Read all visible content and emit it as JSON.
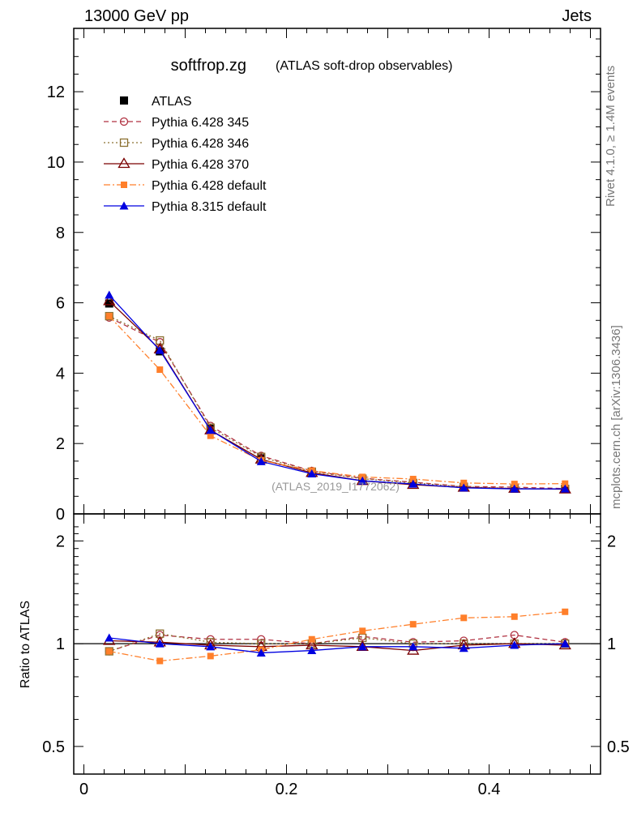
{
  "header": {
    "energy": "13000 GeV pp",
    "process": "Jets"
  },
  "side_labels": {
    "rivet": "Rivet 4.1.0, ≥ 1.4M events",
    "mcplots": "mcplots.cern.ch [arXiv:1306.3436]"
  },
  "colors": {
    "atlas": "#000000",
    "p6_345": "#b03040",
    "p6_346": "#8b7030",
    "p6_370": "#7a0000",
    "p6_default": "#ff7f2a",
    "p8_default": "#0000e0"
  },
  "chart_data": [
    {
      "type": "line",
      "title": "softfrop.zg",
      "subtitle": "(ATLAS soft-drop observables)",
      "watermark": "(ATLAS_2019_I1772062)",
      "xlabel": "",
      "ylabel": "",
      "xlim": [
        -0.01,
        0.51
      ],
      "ylim": [
        0,
        13.8
      ],
      "yticks": [
        0,
        2,
        4,
        6,
        8,
        10,
        12
      ],
      "ytick_labels": [
        "0",
        "2",
        "4",
        "6",
        "8",
        "10",
        "12"
      ],
      "legend_position": "top-left",
      "x": [
        0.025,
        0.075,
        0.125,
        0.175,
        0.225,
        0.275,
        0.325,
        0.375,
        0.425,
        0.475
      ],
      "series": [
        {
          "name": "ATLAS",
          "key": "atlas",
          "style": "data",
          "marker": "filled-square",
          "values": [
            5.98,
            4.62,
            2.42,
            1.58,
            1.19,
            0.96,
            0.87,
            0.76,
            0.72,
            0.71
          ]
        },
        {
          "name": "Pythia 6.428 345",
          "key": "p6_345",
          "style": "dashed",
          "marker": "open-circle",
          "values": [
            5.58,
            4.88,
            2.5,
            1.65,
            1.22,
            1.01,
            0.9,
            0.78,
            0.76,
            0.72
          ]
        },
        {
          "name": "Pythia 6.428 346",
          "key": "p6_346",
          "style": "dotted",
          "marker": "open-square",
          "values": [
            5.62,
            4.93,
            2.45,
            1.62,
            1.2,
            1.0,
            0.88,
            0.77,
            0.72,
            0.71
          ]
        },
        {
          "name": "Pythia 6.428 370",
          "key": "p6_370",
          "style": "solid",
          "marker": "open-triangle",
          "values": [
            6.05,
            4.68,
            2.38,
            1.55,
            1.17,
            0.94,
            0.83,
            0.75,
            0.72,
            0.7
          ]
        },
        {
          "name": "Pythia 6.428 default",
          "key": "p6_default",
          "style": "dashdot",
          "marker": "filled-square-small",
          "values": [
            5.62,
            4.1,
            2.22,
            1.52,
            1.23,
            1.05,
            0.99,
            0.88,
            0.85,
            0.86
          ]
        },
        {
          "name": "Pythia 8.315 default",
          "key": "p8_default",
          "style": "solid",
          "marker": "filled-triangle",
          "values": [
            6.22,
            4.65,
            2.38,
            1.49,
            1.14,
            0.94,
            0.85,
            0.74,
            0.71,
            0.71
          ]
        }
      ]
    },
    {
      "type": "line",
      "title": "",
      "xlabel": "",
      "ylabel": "Ratio to ATLAS",
      "xlim": [
        -0.01,
        0.51
      ],
      "ylim": [
        0.415,
        2.4
      ],
      "yscale": "log",
      "yticks": [
        0.5,
        1,
        2
      ],
      "ytick_labels": [
        "0.5",
        "1",
        "2"
      ],
      "xticks": [
        0,
        0.2,
        0.4
      ],
      "xtick_labels": [
        "0",
        "0.2",
        "0.4"
      ],
      "x": [
        0.025,
        0.075,
        0.125,
        0.175,
        0.225,
        0.275,
        0.325,
        0.375,
        0.425,
        0.475
      ],
      "series": [
        {
          "name": "Pythia 6.428 345",
          "key": "p6_345",
          "style": "dashed",
          "marker": "open-circle",
          "values": [
            0.95,
            1.06,
            1.03,
            1.03,
            1.0,
            1.05,
            1.01,
            1.02,
            1.06,
            1.01
          ]
        },
        {
          "name": "Pythia 6.428 346",
          "key": "p6_346",
          "style": "dotted",
          "marker": "open-square",
          "values": [
            0.95,
            1.07,
            1.01,
            1.0,
            1.0,
            1.04,
            1.0,
            1.0,
            1.0,
            1.0
          ]
        },
        {
          "name": "Pythia 6.428 370",
          "key": "p6_370",
          "style": "solid",
          "marker": "open-triangle",
          "values": [
            1.02,
            1.01,
            0.99,
            0.98,
            0.99,
            0.98,
            0.955,
            0.99,
            1.0,
            0.99
          ]
        },
        {
          "name": "Pythia 6.428 default",
          "key": "p6_default",
          "style": "dashdot",
          "marker": "filled-square-small",
          "values": [
            0.95,
            0.89,
            0.92,
            0.96,
            1.03,
            1.09,
            1.14,
            1.19,
            1.2,
            1.24
          ]
        },
        {
          "name": "Pythia 8.315 default",
          "key": "p8_default",
          "style": "solid",
          "marker": "filled-triangle",
          "values": [
            1.04,
            1.0,
            0.98,
            0.94,
            0.955,
            0.98,
            0.98,
            0.97,
            0.99,
            1.0
          ]
        }
      ]
    }
  ]
}
